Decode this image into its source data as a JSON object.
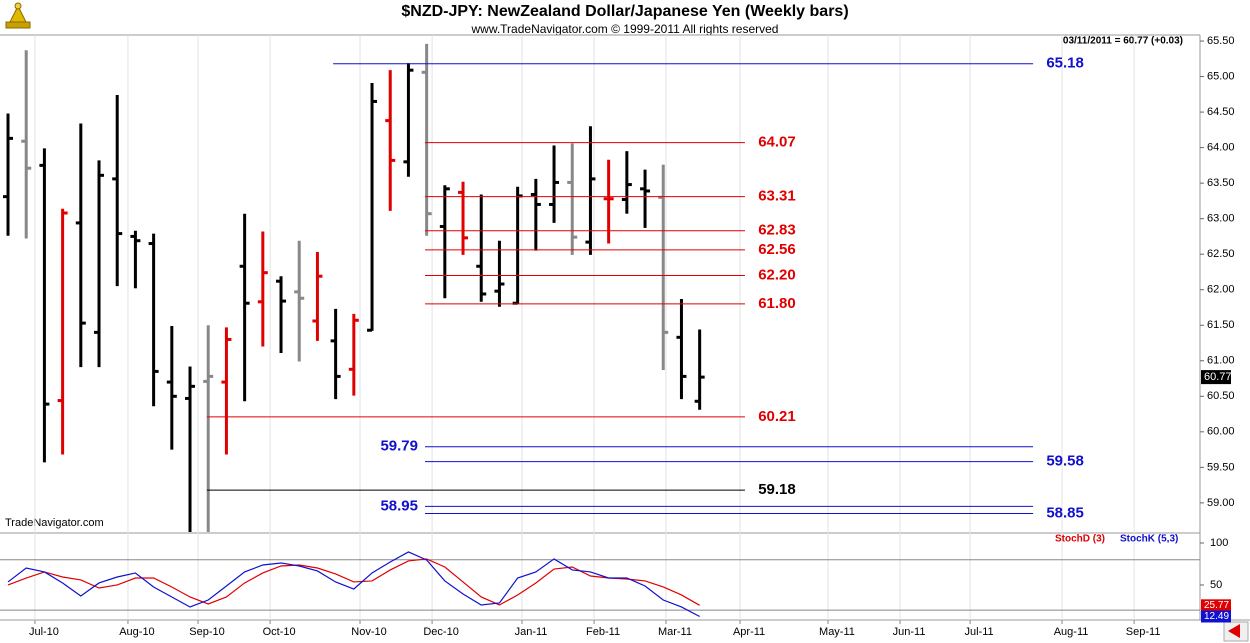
{
  "chart_data": [
    {
      "type": "ohlc",
      "title": "$NZD-JPY:  NewZealand Dollar/Japanese Yen  (Weekly bars)",
      "subtitle": "www.TradeNavigator.com © 1999-2011 All rights reserved",
      "annotation": "03/11/2011 = 60.77 (+0.03)",
      "watermark": "TradeNavigator.com",
      "x": [
        0,
        1,
        2,
        3,
        4,
        5,
        6,
        7,
        8,
        9,
        10,
        11,
        12,
        13,
        14,
        15,
        16,
        17,
        18,
        19,
        20,
        21,
        22,
        23,
        24,
        25,
        26,
        27,
        28,
        29,
        30,
        31,
        32,
        33,
        34,
        35,
        36,
        37,
        38
      ],
      "open": [
        63.31,
        64.09,
        63.75,
        60.44,
        62.94,
        61.4,
        63.56,
        62.75,
        62.65,
        60.7,
        60.47,
        60.71,
        60.7,
        62.33,
        61.83,
        62.12,
        61.97,
        61.56,
        61.28,
        60.88,
        61.43,
        64.38,
        63.8,
        65.06,
        62.89,
        63.37,
        62.33,
        61.98,
        61.81,
        63.34,
        63.2,
        63.51,
        62.67,
        63.28,
        63.27,
        63.42,
        63.3,
        61.33,
        60.43
      ],
      "high": [
        64.48,
        65.37,
        63.99,
        63.14,
        64.34,
        63.82,
        64.74,
        62.83,
        62.79,
        61.49,
        60.92,
        61.5,
        61.47,
        63.07,
        62.82,
        62.19,
        62.69,
        62.53,
        61.73,
        61.66,
        64.91,
        65.09,
        65.19,
        65.46,
        63.47,
        63.52,
        63.34,
        62.69,
        63.45,
        63.56,
        64.03,
        64.06,
        64.3,
        63.83,
        63.95,
        63.69,
        63.76,
        61.87,
        61.44
      ],
      "low": [
        62.76,
        62.72,
        59.57,
        59.68,
        60.91,
        60.91,
        62.05,
        62.02,
        60.36,
        59.75,
        58.5,
        58.5,
        59.68,
        60.43,
        61.2,
        61.11,
        60.99,
        61.28,
        60.46,
        60.51,
        61.42,
        63.11,
        63.59,
        62.76,
        61.88,
        62.49,
        61.83,
        61.76,
        61.8,
        62.55,
        62.94,
        62.49,
        62.49,
        62.65,
        63.07,
        62.87,
        60.87,
        60.46,
        60.31
      ],
      "close": [
        64.13,
        63.71,
        60.39,
        63.08,
        61.53,
        63.61,
        62.79,
        62.69,
        60.85,
        60.5,
        60.64,
        60.78,
        61.3,
        61.81,
        62.24,
        61.84,
        61.88,
        62.19,
        60.78,
        61.57,
        64.65,
        63.82,
        65.09,
        63.07,
        63.42,
        62.73,
        61.94,
        62.08,
        63.32,
        63.2,
        63.51,
        62.74,
        63.56,
        63.28,
        63.48,
        63.39,
        61.4,
        60.78,
        60.77
      ],
      "colors": [
        "#000000",
        "#888888",
        "#000000",
        "#e00000",
        "#000000",
        "#000000",
        "#000000",
        "#000000",
        "#000000",
        "#000000",
        "#000000",
        "#888888",
        "#e00000",
        "#000000",
        "#e00000",
        "#000000",
        "#888888",
        "#e00000",
        "#000000",
        "#e00000",
        "#000000",
        "#e00000",
        "#000000",
        "#888888",
        "#000000",
        "#e00000",
        "#000000",
        "#000000",
        "#000000",
        "#000000",
        "#000000",
        "#888888",
        "#000000",
        "#e00000",
        "#000000",
        "#000000",
        "#888888",
        "#000000",
        "#000000"
      ],
      "levels": [
        {
          "value": 65.18,
          "label": "65.18",
          "color": "#1010d0",
          "from": 17.86,
          "to": 56.32,
          "side": "right"
        },
        {
          "value": 64.07,
          "label": "64.07",
          "color": "#e00000",
          "from": 22.91,
          "to": 40.49,
          "side": "right"
        },
        {
          "value": 63.31,
          "label": "63.31",
          "color": "#e00000",
          "from": 22.91,
          "to": 40.49,
          "side": "right"
        },
        {
          "value": 62.83,
          "label": "62.83",
          "color": "#e00000",
          "from": 22.91,
          "to": 40.49,
          "side": "right"
        },
        {
          "value": 62.56,
          "label": "62.56",
          "color": "#e00000",
          "from": 22.91,
          "to": 40.49,
          "side": "right"
        },
        {
          "value": 62.2,
          "label": "62.20",
          "color": "#e00000",
          "from": 22.91,
          "to": 40.49,
          "side": "right"
        },
        {
          "value": 61.8,
          "label": "61.80",
          "color": "#e00000",
          "from": 22.91,
          "to": 40.49,
          "side": "right"
        },
        {
          "value": 60.21,
          "label": "60.21",
          "color": "#e00000",
          "from": 10.93,
          "to": 40.49,
          "side": "right"
        },
        {
          "value": 59.79,
          "label": "59.79",
          "color": "#1010d0",
          "from": 22.91,
          "to": 56.32,
          "side": "left"
        },
        {
          "value": 59.58,
          "label": "59.58",
          "color": "#1010d0",
          "from": 22.91,
          "to": 56.32,
          "side": "right"
        },
        {
          "value": 59.18,
          "label": "59.18",
          "color": "#000000",
          "from": 10.93,
          "to": 40.49,
          "side": "right"
        },
        {
          "value": 58.95,
          "label": "58.95",
          "color": "#1010d0",
          "from": 22.91,
          "to": 56.32,
          "side": "left"
        },
        {
          "value": 58.85,
          "label": "58.85",
          "color": "#1010d0",
          "from": 22.91,
          "to": 56.32,
          "side": "right"
        }
      ],
      "ylim": [
        58.59,
        65.585
      ],
      "yticks": [
        {
          "value": 65.5,
          "label": "65.50"
        },
        {
          "value": 65,
          "label": "65.00"
        },
        {
          "value": 64.5,
          "label": "64.50"
        },
        {
          "value": 64,
          "label": "64.00"
        },
        {
          "value": 63.5,
          "label": "63.50"
        },
        {
          "value": 63,
          "label": "63.00"
        },
        {
          "value": 62.5,
          "label": "62.50"
        },
        {
          "value": 62,
          "label": "62.00"
        },
        {
          "value": 61.5,
          "label": "61.50"
        },
        {
          "value": 61,
          "label": "61.00"
        },
        {
          "value": 60.5,
          "label": "60.50"
        },
        {
          "value": 60,
          "label": "60.00"
        },
        {
          "value": 59.5,
          "label": "59.50"
        },
        {
          "value": 59,
          "label": "59.00"
        }
      ],
      "xlim": [
        -0.44,
        65.49
      ],
      "xticks": [
        {
          "value": 1.48,
          "label": "Jul-10"
        },
        {
          "value": 6.59,
          "label": "Aug-10"
        },
        {
          "value": 10.44,
          "label": "Sep-10"
        },
        {
          "value": 14.4,
          "label": "Oct-10"
        },
        {
          "value": 19.34,
          "label": "Nov-10"
        },
        {
          "value": 23.3,
          "label": "Dec-10"
        },
        {
          "value": 28.24,
          "label": "Jan-11"
        },
        {
          "value": 32.2,
          "label": "Feb-11"
        },
        {
          "value": 36.15,
          "label": "Mar-11"
        },
        {
          "value": 40.22,
          "label": "Apr-11"
        },
        {
          "value": 45.05,
          "label": "May-11"
        },
        {
          "value": 49.01,
          "label": "Jun-11"
        },
        {
          "value": 52.86,
          "label": "Jul-11"
        },
        {
          "value": 57.91,
          "label": "Aug-11"
        },
        {
          "value": 61.87,
          "label": "Sep-11"
        }
      ]
    },
    {
      "type": "line",
      "series": [
        {
          "name": "StochD (3)",
          "color": "#e00000",
          "values": [
            50.0,
            58.3,
            65.5,
            59.5,
            56.0,
            46.4,
            50.0,
            58.3,
            58.3,
            47.6,
            35.7,
            27.4,
            35.7,
            52.4,
            64.3,
            72.6,
            73.8,
            70.2,
            63.1,
            53.6,
            54.8,
            67.9,
            78.6,
            81.0,
            71.4,
            53.6,
            35.7,
            26.2,
            38.1,
            52.4,
            69.0,
            71.4,
            60.7,
            58.3,
            57.1,
            54.8,
            47.6,
            38.1,
            25.77
          ]
        },
        {
          "name": "StochK (5,3)",
          "color": "#1010d0",
          "values": [
            53.6,
            70.2,
            65.5,
            52.4,
            36.9,
            52.4,
            59.5,
            64.3,
            47.6,
            35.7,
            23.8,
            32.1,
            48.8,
            65.5,
            73.8,
            76.2,
            72.6,
            66.7,
            53.6,
            45.2,
            64.3,
            77.4,
            89.3,
            79.8,
            54.8,
            39.3,
            26.2,
            28.6,
            58.3,
            65.5,
            81.0,
            67.9,
            65.5,
            58.3,
            58.3,
            48.8,
            32.1,
            23.8,
            12.49
          ]
        }
      ],
      "ylim": [
        8.3,
        109.5
      ],
      "yticks": [
        100,
        50
      ],
      "ref_lines": [
        80,
        20
      ]
    }
  ]
}
